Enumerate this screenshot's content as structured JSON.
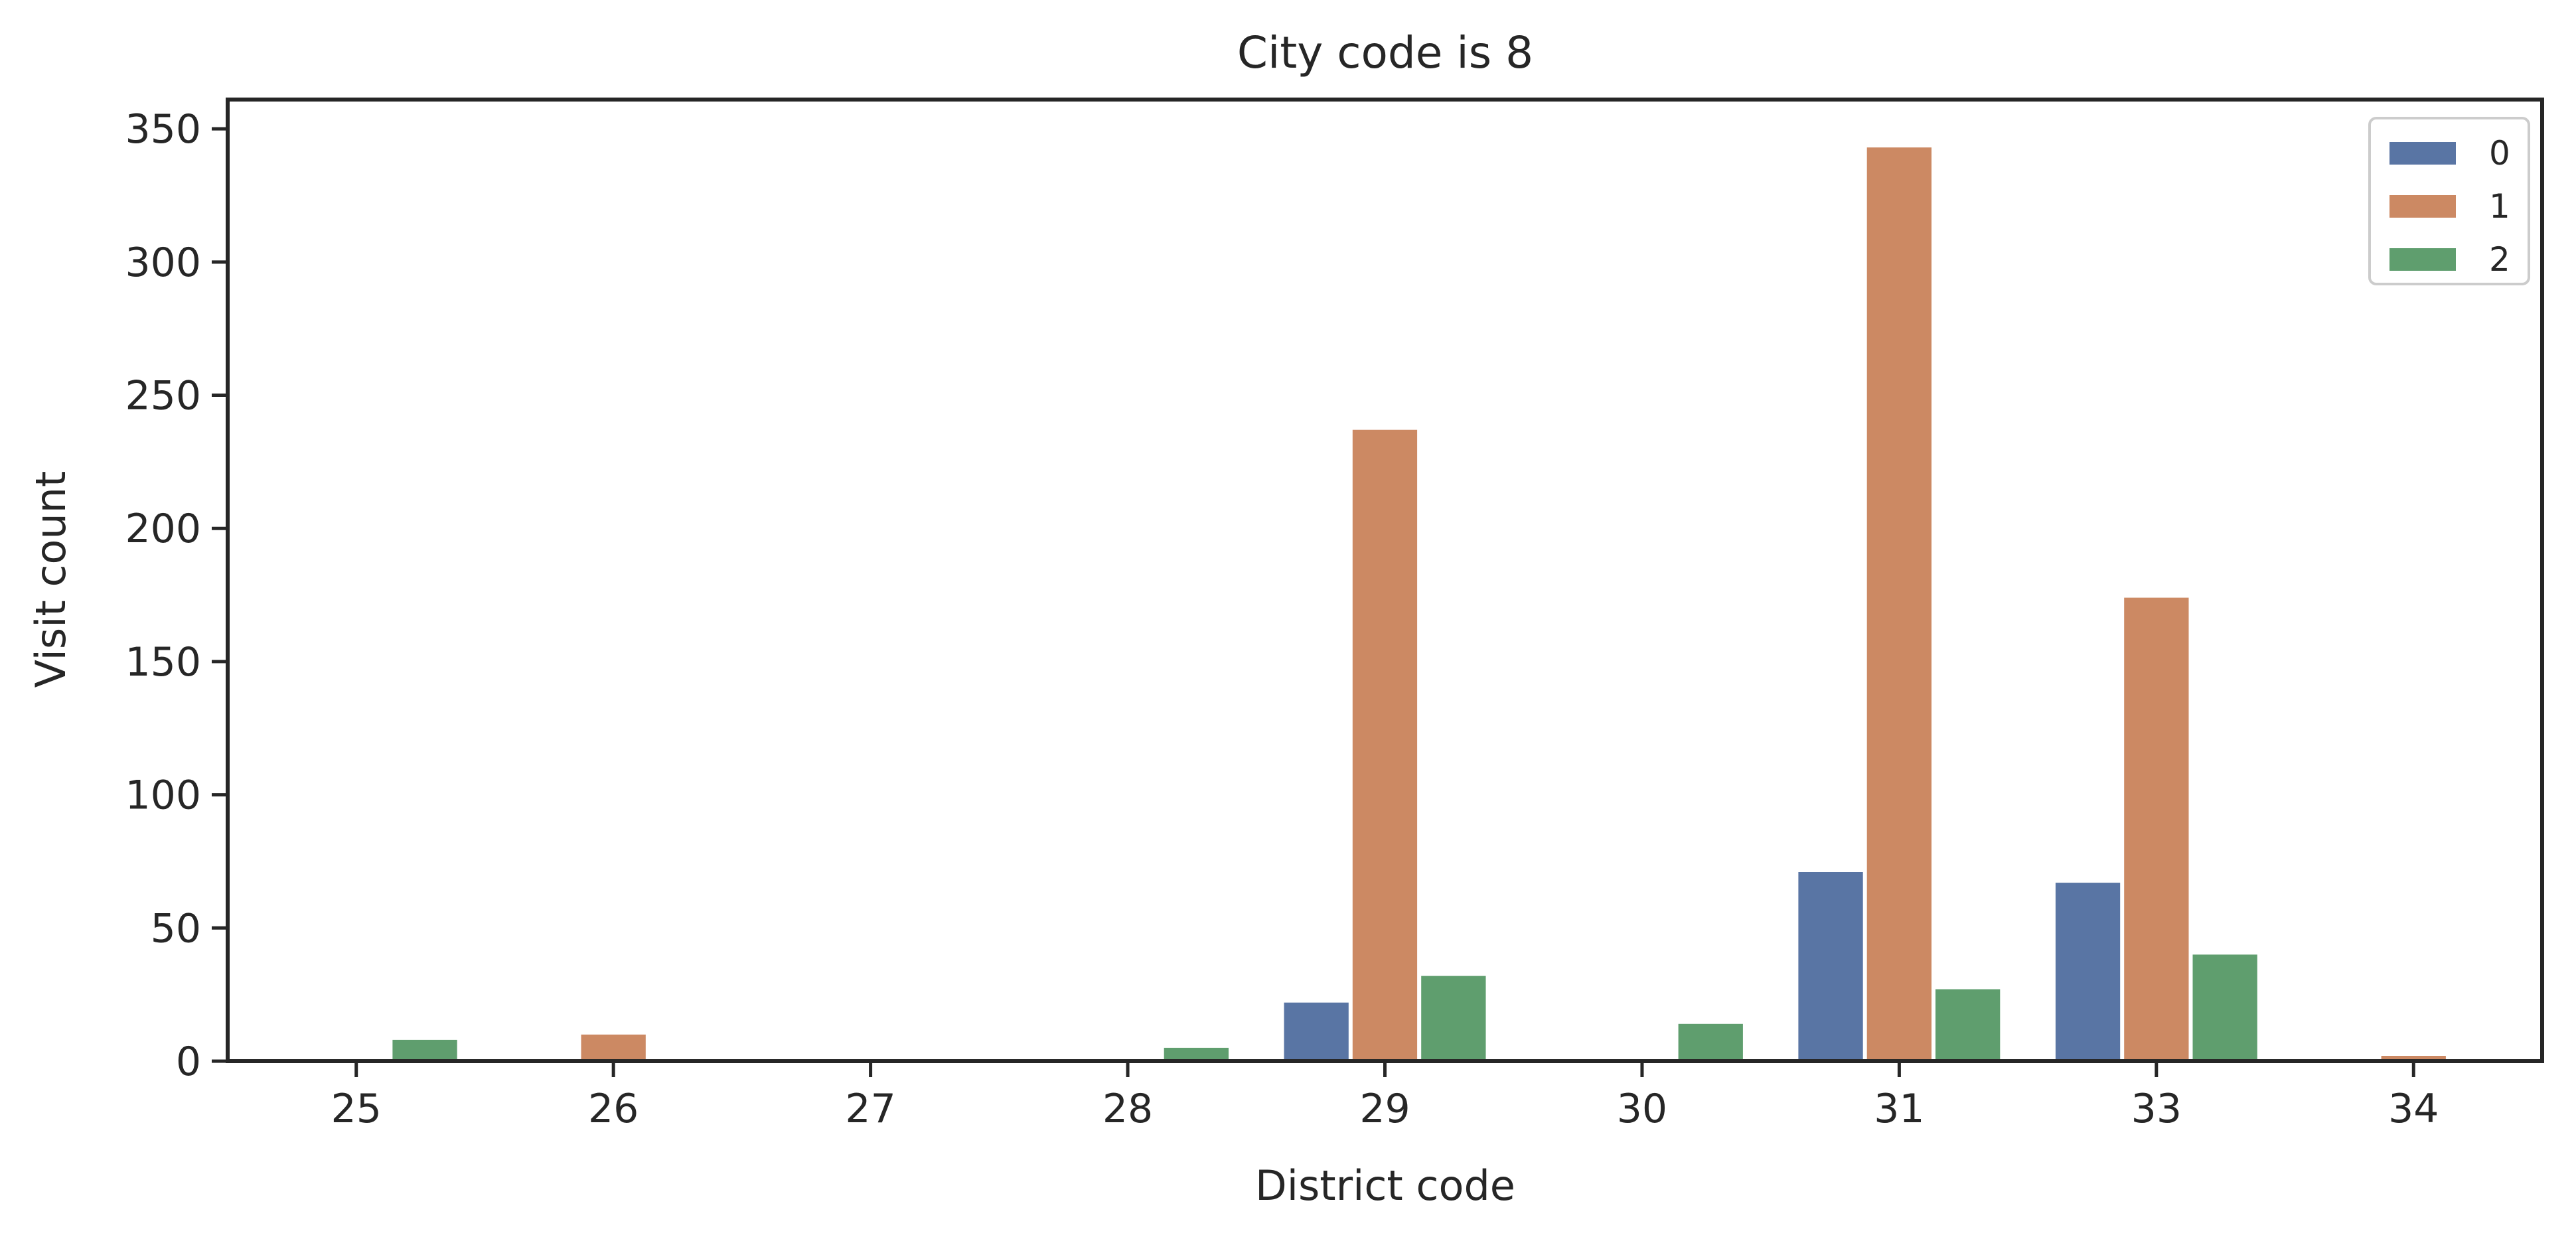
{
  "chart_data": {
    "type": "bar",
    "title": "City code is 8",
    "xlabel": "District code",
    "ylabel": "Visit count",
    "categories": [
      "25",
      "26",
      "27",
      "28",
      "29",
      "30",
      "31",
      "33",
      "34"
    ],
    "ylim": [
      0,
      361
    ],
    "yticks": [
      0,
      50,
      100,
      150,
      200,
      250,
      300,
      350
    ],
    "grid": false,
    "legend_position": "top-right",
    "series": [
      {
        "name": "0",
        "color": "#5975a4",
        "values": [
          0,
          0,
          0,
          0,
          22,
          0,
          71,
          67,
          0
        ]
      },
      {
        "name": "1",
        "color": "#cc8963",
        "values": [
          0,
          10,
          0,
          0,
          237,
          0,
          343,
          174,
          2
        ]
      },
      {
        "name": "2",
        "color": "#5f9e6e",
        "values": [
          8,
          0,
          0,
          5,
          32,
          14,
          27,
          40,
          0
        ]
      }
    ]
  }
}
